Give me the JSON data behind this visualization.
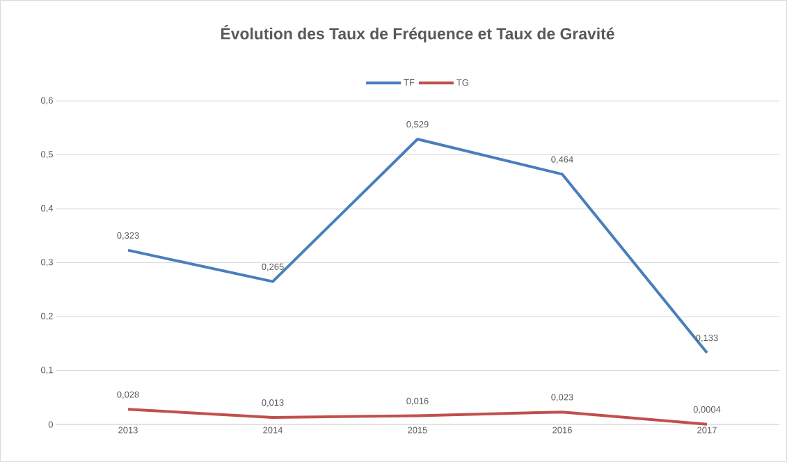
{
  "chart_data": {
    "type": "line",
    "title": "Évolution des Taux de Fréquence et Taux de Gravité",
    "categories": [
      "2013",
      "2014",
      "2015",
      "2016",
      "2017"
    ],
    "series": [
      {
        "name": "TF",
        "color": "#4a7ebb",
        "values": [
          0.323,
          0.265,
          0.529,
          0.464,
          0.133
        ],
        "value_labels": [
          "0,323",
          "0,265",
          "0,529",
          "0,464",
          "0,133"
        ]
      },
      {
        "name": "TG",
        "color": "#c0504d",
        "values": [
          0.028,
          0.013,
          0.016,
          0.023,
          0.0004
        ],
        "value_labels": [
          "0,028",
          "0,013",
          "0,016",
          "0,023",
          "0,0004"
        ]
      }
    ],
    "ylim": [
      0,
      0.6
    ],
    "yticks": [
      {
        "value": 0,
        "label": "0"
      },
      {
        "value": 0.1,
        "label": "0,1"
      },
      {
        "value": 0.2,
        "label": "0,2"
      },
      {
        "value": 0.3,
        "label": "0,3"
      },
      {
        "value": 0.4,
        "label": "0,4"
      },
      {
        "value": 0.5,
        "label": "0,5"
      },
      {
        "value": 0.6,
        "label": "0,6"
      }
    ],
    "grid": "y",
    "legend": "top"
  }
}
